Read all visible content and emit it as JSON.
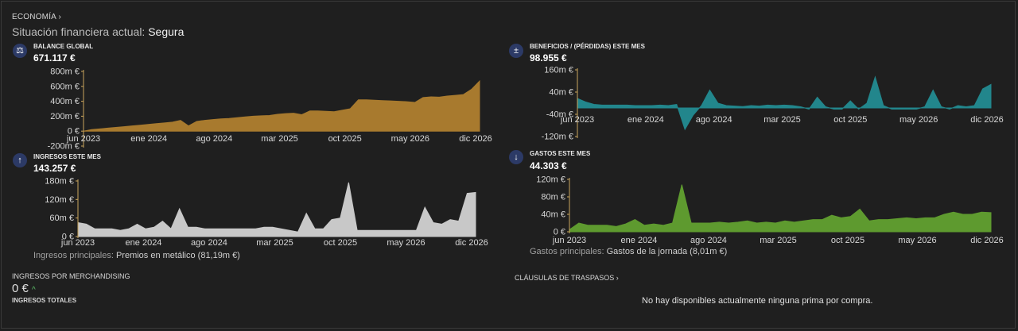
{
  "breadcrumb": "ECONOMÍA ›",
  "status": {
    "label": "Situación financiera actual:",
    "value": "Segura"
  },
  "panels": {
    "balance": {
      "title": "BALANCE GLOBAL",
      "value": "671.117 €",
      "icon": "scale-icon",
      "color": "#a87a2e"
    },
    "profit": {
      "title": "BENEFICIOS / (PÉRDIDAS) ESTE MES",
      "value": "98.955 €",
      "icon": "plus-minus-icon",
      "color": "#22868c"
    },
    "income": {
      "title": "INGRESOS ESTE MES",
      "value": "143.257 €",
      "icon": "arrow-up-icon",
      "color": "#c8c8c8"
    },
    "expenses": {
      "title": "GASTOS ESTE MES",
      "value": "44.303 €",
      "icon": "arrow-down-icon",
      "color": "#5e9a2f"
    }
  },
  "income_note": {
    "label": "Ingresos principales:",
    "value": "Premios en metálico (81,19m €)"
  },
  "expense_note": {
    "label": "Gastos principales:",
    "value": "Gastos de la jornada (8,01m €)"
  },
  "merch": {
    "title": "INGRESOS POR MERCHANDISING",
    "value": "0 €",
    "total_label": "INGRESOS TOTALES"
  },
  "transfers": {
    "title": "CLÁUSULAS DE TRASPASOS ›",
    "empty": "No hay disponibles actualmente ninguna prima por compra."
  },
  "chart_data": [
    {
      "type": "area",
      "name": "balance",
      "x_ticks": [
        "jun 2023",
        "ene 2024",
        "ago 2024",
        "mar 2025",
        "oct 2025",
        "may 2026",
        "dic 2026"
      ],
      "y_ticks": [
        "800m €",
        "600m €",
        "400m €",
        "200m €",
        "0 €",
        "-200m €"
      ],
      "ylim": [
        -200,
        800
      ],
      "values": [
        0,
        20,
        30,
        40,
        50,
        60,
        70,
        80,
        90,
        100,
        110,
        120,
        145,
        70,
        130,
        145,
        155,
        165,
        170,
        180,
        190,
        200,
        205,
        210,
        225,
        235,
        240,
        220,
        270,
        270,
        265,
        260,
        280,
        300,
        420,
        420,
        415,
        410,
        405,
        400,
        395,
        385,
        450,
        460,
        455,
        470,
        480,
        490,
        560,
        671
      ]
    },
    {
      "type": "area",
      "name": "profit",
      "x_ticks": [
        "jun 2023",
        "ene 2024",
        "ago 2024",
        "mar 2025",
        "oct 2025",
        "may 2026",
        "dic 2026"
      ],
      "y_ticks": [
        "160m €",
        "40m €",
        "-40m €",
        "-120m €"
      ],
      "ylim": [
        -120,
        160
      ],
      "values": [
        40,
        25,
        15,
        12,
        12,
        12,
        12,
        10,
        10,
        10,
        12,
        10,
        15,
        -90,
        -30,
        10,
        75,
        20,
        10,
        8,
        6,
        10,
        8,
        12,
        10,
        12,
        10,
        5,
        -5,
        45,
        5,
        -5,
        -5,
        30,
        -5,
        20,
        130,
        10,
        -5,
        -5,
        -5,
        -5,
        5,
        75,
        5,
        -5,
        10,
        5,
        10,
        80,
        99
      ]
    },
    {
      "type": "area",
      "name": "income",
      "x_ticks": [
        "jun 2023",
        "ene 2024",
        "ago 2024",
        "mar 2025",
        "oct 2025",
        "may 2026",
        "dic 2026"
      ],
      "y_ticks": [
        "180m €",
        "120m €",
        "60m €",
        "0 €"
      ],
      "ylim": [
        0,
        180
      ],
      "values": [
        45,
        40,
        25,
        25,
        25,
        20,
        25,
        40,
        25,
        30,
        50,
        25,
        90,
        30,
        30,
        25,
        25,
        25,
        25,
        25,
        25,
        25,
        30,
        30,
        25,
        20,
        15,
        75,
        25,
        25,
        55,
        60,
        175,
        20,
        20,
        20,
        20,
        20,
        20,
        20,
        20,
        95,
        45,
        40,
        55,
        50,
        140,
        143
      ]
    },
    {
      "type": "area",
      "name": "expenses",
      "x_ticks": [
        "jun 2023",
        "ene 2024",
        "ago 2024",
        "mar 2025",
        "oct 2025",
        "may 2026",
        "dic 2026"
      ],
      "y_ticks": [
        "120m €",
        "80m €",
        "40m €",
        "0 €"
      ],
      "ylim": [
        0,
        120
      ],
      "values": [
        5,
        20,
        15,
        15,
        15,
        12,
        18,
        28,
        15,
        18,
        15,
        20,
        108,
        20,
        20,
        20,
        22,
        20,
        22,
        25,
        20,
        22,
        20,
        25,
        22,
        25,
        28,
        28,
        38,
        32,
        35,
        52,
        25,
        28,
        28,
        30,
        32,
        30,
        32,
        32,
        40,
        45,
        40,
        40,
        45,
        44
      ]
    }
  ]
}
